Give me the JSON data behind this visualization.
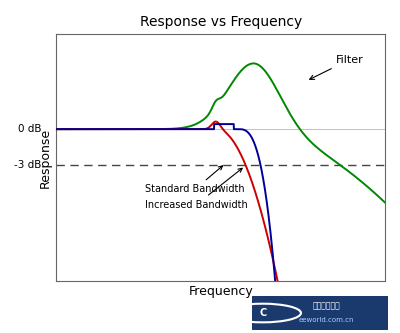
{
  "title": "Response vs Frequency",
  "xlabel": "Frequency",
  "ylabel": "Response",
  "y0dB_label": "0 dB",
  "y3dB_label": "-3 dB",
  "filter_label": "Filter",
  "standard_bw_label": "Standard Bandwidth",
  "increased_bw_label": "Increased Bandwidth",
  "colors": {
    "blue": "#000099",
    "red": "#CC0000",
    "green": "#008800",
    "dashed": "#555555"
  },
  "background": "#FFFFFF",
  "watermark_bg": "#1a3a6e",
  "minus3dB": -0.28,
  "xlim": [
    0,
    10
  ],
  "ylim": [
    -1.2,
    0.75
  ]
}
